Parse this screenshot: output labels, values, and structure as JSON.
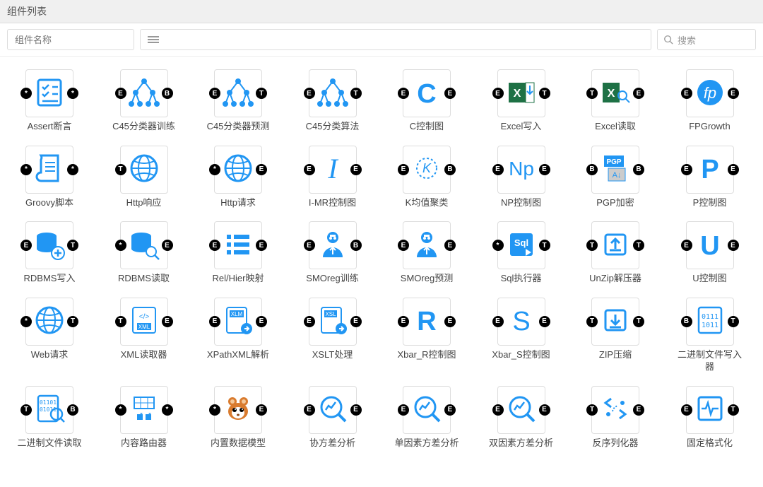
{
  "header": {
    "title": "组件列表"
  },
  "toolbar": {
    "name_placeholder": "组件名称",
    "search_placeholder": "搜索"
  },
  "colors": {
    "accent": "#2196f3",
    "border": "#dddddd",
    "text": "#444444",
    "port": "#000000"
  },
  "components": [
    {
      "label": "Assert断言",
      "icon": "checklist",
      "pl": "*",
      "pr": "*"
    },
    {
      "label": "C45分类器训练",
      "icon": "tree",
      "pl": "E",
      "pr": "B"
    },
    {
      "label": "C45分类器预测",
      "icon": "tree",
      "pl": "E",
      "pr": "T"
    },
    {
      "label": "C45分类算法",
      "icon": "tree",
      "pl": "E",
      "pr": "T"
    },
    {
      "label": "C控制图",
      "icon": "C",
      "pl": "E",
      "pr": "E"
    },
    {
      "label": "Excel写入",
      "icon": "excel-in",
      "pl": "E",
      "pr": "T"
    },
    {
      "label": "Excel读取",
      "icon": "excel-search",
      "pl": "T",
      "pr": "E"
    },
    {
      "label": "FPGrowth",
      "icon": "fp",
      "pl": "E",
      "pr": "E"
    },
    {
      "label": "Groovy脚本",
      "icon": "script",
      "pl": "*",
      "pr": "*"
    },
    {
      "label": "Http响应",
      "icon": "globe",
      "pl": "T",
      "pr": ""
    },
    {
      "label": "Http请求",
      "icon": "globe",
      "pl": "*",
      "pr": "E"
    },
    {
      "label": "I-MR控制图",
      "icon": "I",
      "pl": "E",
      "pr": "E"
    },
    {
      "label": "K均值聚类",
      "icon": "K",
      "pl": "E",
      "pr": "B"
    },
    {
      "label": "NP控制图",
      "icon": "Np",
      "pl": "E",
      "pr": "E"
    },
    {
      "label": "PGP加密",
      "icon": "pgp",
      "pl": "B",
      "pr": "B"
    },
    {
      "label": "P控制图",
      "icon": "P",
      "pl": "E",
      "pr": "E"
    },
    {
      "label": "RDBMS写入",
      "icon": "db-plus",
      "pl": "E",
      "pr": "T"
    },
    {
      "label": "RDBMS读取",
      "icon": "db-search",
      "pl": "*",
      "pr": "E"
    },
    {
      "label": "Rel/Hier映射",
      "icon": "list",
      "pl": "E",
      "pr": "E"
    },
    {
      "label": "SMOreg训练",
      "icon": "person",
      "pl": "E",
      "pr": "B"
    },
    {
      "label": "SMOreg预测",
      "icon": "person",
      "pl": "E",
      "pr": "E"
    },
    {
      "label": "Sql执行器",
      "icon": "sql",
      "pl": "*",
      "pr": "T"
    },
    {
      "label": "UnZip解压器",
      "icon": "unzip",
      "pl": "T",
      "pr": "T"
    },
    {
      "label": "U控制图",
      "icon": "U",
      "pl": "E",
      "pr": "E"
    },
    {
      "label": "Web请求",
      "icon": "globe",
      "pl": "*",
      "pr": "T"
    },
    {
      "label": "XML读取器",
      "icon": "xml",
      "pl": "T",
      "pr": "E"
    },
    {
      "label": "XPathXML解析",
      "icon": "xlm",
      "pl": "E",
      "pr": "E"
    },
    {
      "label": "XSLT处理",
      "icon": "xsl",
      "pl": "E",
      "pr": "E"
    },
    {
      "label": "Xbar_R控制图",
      "icon": "R",
      "pl": "E",
      "pr": "E"
    },
    {
      "label": "Xbar_S控制图",
      "icon": "S",
      "pl": "E",
      "pr": "E"
    },
    {
      "label": "ZIP压缩",
      "icon": "zip",
      "pl": "T",
      "pr": "T"
    },
    {
      "label": "二进制文件写入器",
      "icon": "binary",
      "pl": "B",
      "pr": "T"
    },
    {
      "label": "二进制文件读取",
      "icon": "binary-search",
      "pl": "T",
      "pr": "B"
    },
    {
      "label": "内容路由器",
      "icon": "router",
      "pl": "*",
      "pr": "*"
    },
    {
      "label": "内置数据模型",
      "icon": "squirrel",
      "pl": "*",
      "pr": "E"
    },
    {
      "label": "协方差分析",
      "icon": "analysis",
      "pl": "E",
      "pr": "E"
    },
    {
      "label": "单因素方差分析",
      "icon": "analysis",
      "pl": "E",
      "pr": "E"
    },
    {
      "label": "双因素方差分析",
      "icon": "analysis",
      "pl": "E",
      "pr": "E"
    },
    {
      "label": "反序列化器",
      "icon": "deserial",
      "pl": "T",
      "pr": "E"
    },
    {
      "label": "固定格式化",
      "icon": "pulse",
      "pl": "E",
      "pr": "T"
    }
  ]
}
